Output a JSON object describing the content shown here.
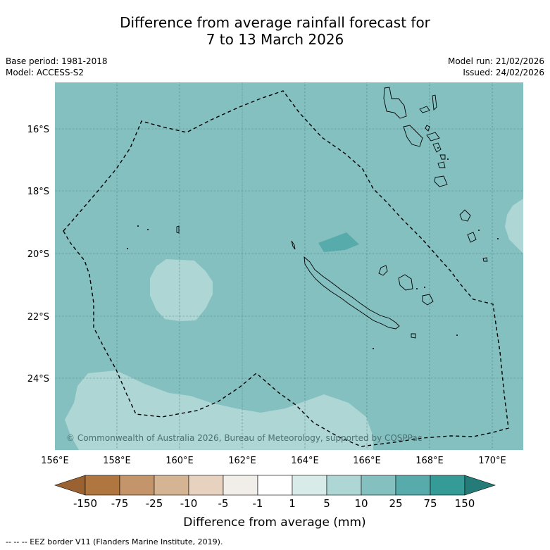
{
  "title_line1": "Difference from average rainfall forecast for",
  "title_line2": "7 to 13 March 2026",
  "base_period": "Base period: 1981-2018",
  "model": "Model: ACCESS-S2",
  "model_run": "Model run: 21/02/2026",
  "issued": "Issued: 24/02/2026",
  "credit": "© Commonwealth of Australia 2026, Bureau of Meteorology, supported by COSPPac",
  "footnote": "--  --  -- EEZ border V11 (Flanders Marine Institute, 2019).",
  "axes": {
    "lat_labels": [
      "16°S",
      "18°S",
      "20°S",
      "22°S",
      "24°S"
    ],
    "lon_labels": [
      "156°E",
      "158°E",
      "160°E",
      "162°E",
      "164°E",
      "166°E",
      "168°E",
      "170°E"
    ]
  },
  "colorbar": {
    "title": "Difference from average (mm)",
    "tick_labels": [
      "-150",
      "-75",
      "-25",
      "-10",
      "-5",
      "-1",
      "1",
      "5",
      "10",
      "25",
      "75",
      "150"
    ],
    "colors": [
      "#9a6230",
      "#b0763f",
      "#c4956a",
      "#d5b493",
      "#e7d2bf",
      "#f1ede9",
      "#ffffff",
      "#d8ebe9",
      "#add6d5",
      "#84c0c0",
      "#58abab",
      "#349b97",
      "#247b78"
    ]
  },
  "colors": {
    "sea_base": "#84c0c0",
    "light_region": "#add6d5",
    "dark_region": "#58abab"
  }
}
